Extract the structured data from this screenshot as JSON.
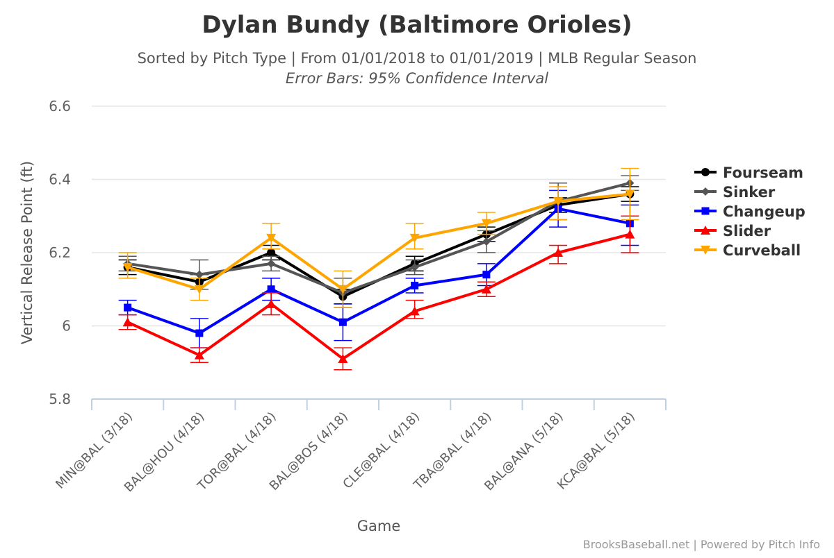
{
  "chart_data": {
    "type": "line",
    "title": "Dylan Bundy (Baltimore Orioles)",
    "subtitle": "Sorted by Pitch Type | From 01/01/2018 to 01/01/2019 | MLB Regular Season",
    "subtitle2": "Error Bars: 95% Confidence Interval",
    "xlabel": "Game",
    "ylabel": "Vertical Release Point (ft)",
    "ylim": [
      5.8,
      6.6
    ],
    "yticks": [
      5.8,
      6,
      6.2,
      6.4,
      6.6
    ],
    "ytick_labels": [
      "5.8",
      "6",
      "6.2",
      "6.4",
      "6.6"
    ],
    "grid": true,
    "legend_position": "right",
    "credits": "BrooksBaseball.net | Powered by Pitch Info",
    "categories": [
      "MIN@BAL (3/18)",
      "BAL@HOU (4/18)",
      "TOR@BAL (4/18)",
      "BAL@BOS (4/18)",
      "CLE@BAL (4/18)",
      "TBA@BAL (4/18)",
      "BAL@ANA (5/18)",
      "KCA@BAL (5/18)"
    ],
    "series": [
      {
        "name": "Fourseam",
        "color": "#000000",
        "marker": "circle",
        "values": [
          6.16,
          6.12,
          6.2,
          6.08,
          6.17,
          6.25,
          6.33,
          6.36
        ],
        "low": [
          6.14,
          6.1,
          6.18,
          6.06,
          6.15,
          6.23,
          6.31,
          6.34
        ],
        "high": [
          6.18,
          6.14,
          6.22,
          6.1,
          6.19,
          6.27,
          6.35,
          6.38
        ]
      },
      {
        "name": "Sinker",
        "color": "#555555",
        "marker": "diamond",
        "values": [
          6.17,
          6.14,
          6.17,
          6.09,
          6.16,
          6.23,
          6.34,
          6.39
        ],
        "low": [
          6.15,
          6.1,
          6.15,
          6.05,
          6.14,
          6.2,
          6.29,
          6.37
        ],
        "high": [
          6.19,
          6.18,
          6.19,
          6.13,
          6.18,
          6.26,
          6.39,
          6.41
        ]
      },
      {
        "name": "Changeup",
        "color": "#0000ff",
        "marker": "square",
        "values": [
          6.05,
          5.98,
          6.1,
          6.01,
          6.11,
          6.14,
          6.32,
          6.28
        ],
        "low": [
          6.03,
          5.94,
          6.07,
          5.96,
          6.09,
          6.11,
          6.27,
          6.22
        ],
        "high": [
          6.07,
          6.02,
          6.13,
          6.06,
          6.13,
          6.17,
          6.37,
          6.33
        ]
      },
      {
        "name": "Slider",
        "color": "#ff0000",
        "marker": "triangle",
        "values": [
          6.01,
          5.92,
          6.06,
          5.91,
          6.04,
          6.1,
          6.2,
          6.25
        ],
        "low": [
          5.99,
          5.9,
          6.03,
          5.88,
          6.02,
          6.08,
          6.17,
          6.2
        ],
        "high": [
          6.03,
          5.94,
          6.09,
          5.94,
          6.07,
          6.12,
          6.22,
          6.3
        ]
      },
      {
        "name": "Curveball",
        "color": "#ffa500",
        "marker": "triangle-down",
        "values": [
          6.16,
          6.1,
          6.24,
          6.1,
          6.24,
          6.28,
          6.34,
          6.36
        ],
        "low": [
          6.13,
          6.07,
          6.21,
          6.05,
          6.21,
          6.25,
          6.29,
          6.29
        ],
        "high": [
          6.2,
          6.13,
          6.28,
          6.15,
          6.28,
          6.31,
          6.38,
          6.43
        ]
      }
    ]
  }
}
